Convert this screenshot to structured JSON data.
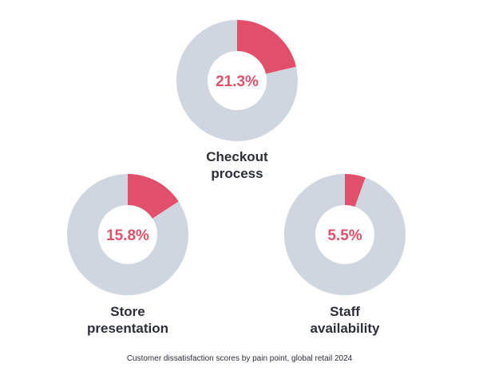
{
  "chart_data": {
    "type": "pie",
    "subtype": "donut",
    "caption": "Customer dissatisfaction scores by pain point, global retail 2024",
    "colors": {
      "highlight": "#e1506b",
      "remainder": "#cfd6df",
      "label": "#2d2f3a"
    },
    "items": [
      {
        "name": "Checkout process",
        "label_lines": [
          "Checkout",
          "process"
        ],
        "value": 21.3,
        "value_label": "21.3%"
      },
      {
        "name": "Store presentation",
        "label_lines": [
          "Store",
          "presentation"
        ],
        "value": 15.8,
        "value_label": "15.8%"
      },
      {
        "name": "Staff availability",
        "label_lines": [
          "Staff",
          "availability"
        ],
        "value": 5.5,
        "value_label": "5.5%"
      }
    ]
  }
}
